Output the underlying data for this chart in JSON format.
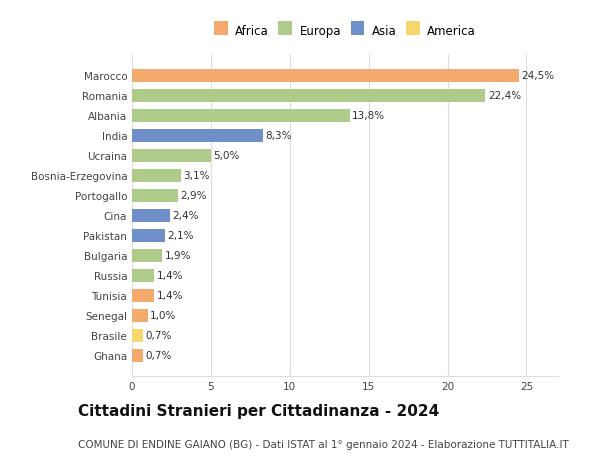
{
  "countries": [
    "Marocco",
    "Romania",
    "Albania",
    "India",
    "Ucraina",
    "Bosnia-Erzegovina",
    "Portogallo",
    "Cina",
    "Pakistan",
    "Bulgaria",
    "Russia",
    "Tunisia",
    "Senegal",
    "Brasile",
    "Ghana"
  ],
  "values": [
    24.5,
    22.4,
    13.8,
    8.3,
    5.0,
    3.1,
    2.9,
    2.4,
    2.1,
    1.9,
    1.4,
    1.4,
    1.0,
    0.7,
    0.7
  ],
  "labels": [
    "24,5%",
    "22,4%",
    "13,8%",
    "8,3%",
    "5,0%",
    "3,1%",
    "2,9%",
    "2,4%",
    "2,1%",
    "1,9%",
    "1,4%",
    "1,4%",
    "1,0%",
    "0,7%",
    "0,7%"
  ],
  "continents": [
    "Africa",
    "Europa",
    "Europa",
    "Asia",
    "Europa",
    "Europa",
    "Europa",
    "Asia",
    "Asia",
    "Europa",
    "Europa",
    "Africa",
    "Africa",
    "America",
    "Africa"
  ],
  "continent_colors": {
    "Africa": "#F4A96D",
    "Europa": "#AECB8A",
    "Asia": "#6E8FC9",
    "America": "#F5D76E"
  },
  "legend_order": [
    "Africa",
    "Europa",
    "Asia",
    "America"
  ],
  "xlim": [
    0,
    27
  ],
  "xticks": [
    0,
    5,
    10,
    15,
    20,
    25
  ],
  "title": "Cittadini Stranieri per Cittadinanza - 2024",
  "subtitle": "COMUNE DI ENDINE GAIANO (BG) - Dati ISTAT al 1° gennaio 2024 - Elaborazione TUTTITALIA.IT",
  "title_fontsize": 11,
  "subtitle_fontsize": 7.5,
  "label_fontsize": 7.5,
  "tick_fontsize": 7.5,
  "legend_fontsize": 8.5,
  "bg_color": "#ffffff",
  "bar_height": 0.65,
  "grid_color": "#dddddd"
}
